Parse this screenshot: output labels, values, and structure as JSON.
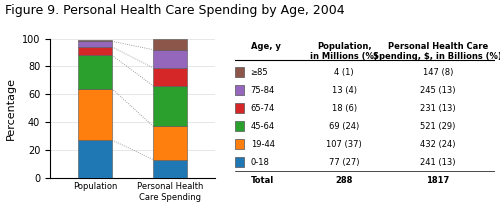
{
  "chart_data": {
    "type": "bar",
    "stacked": true,
    "title": "Figure 9. Personal Health Care Spending by Age, 2004",
    "categories": [
      "Population",
      "Personal Health\nCare Spending"
    ],
    "series": [
      {
        "name": "0-18",
        "values": [
          27,
          13
        ]
      },
      {
        "name": "19-44",
        "values": [
          37,
          24
        ]
      },
      {
        "name": "45-64",
        "values": [
          24,
          29
        ]
      },
      {
        "name": "65-74",
        "values": [
          6,
          13
        ]
      },
      {
        "name": "75-84",
        "values": [
          4,
          13
        ]
      },
      {
        "name": "≥85",
        "values": [
          1,
          8
        ]
      }
    ],
    "ylabel": "Percentage",
    "ylim": [
      0,
      100
    ],
    "yticks": [
      0,
      20,
      40,
      60,
      80,
      100
    ],
    "grid": true,
    "table": {
      "headers": [
        "Age, y",
        "Population,\nin Millions (%)",
        "Personal Health Care\nSpending, $, in Billions (%)"
      ],
      "rows": [
        [
          "≥85",
          "4 (1)",
          "147 (8)"
        ],
        [
          "75-84",
          "13 (4)",
          "245 (13)"
        ],
        [
          "65-74",
          "18 (6)",
          "231 (13)"
        ],
        [
          "45-64",
          "69 (24)",
          "521 (29)"
        ],
        [
          "19-44",
          "107 (37)",
          "432 (24)"
        ],
        [
          "0-18",
          "77 (27)",
          "241 (13)"
        ],
        [
          "Total",
          "288",
          "1817"
        ]
      ]
    }
  }
}
